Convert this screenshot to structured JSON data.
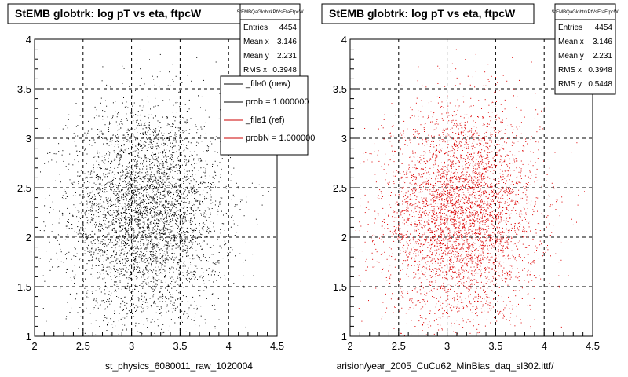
{
  "chart_data": [
    {
      "type": "scatter",
      "title": "StEMB globtrk: log pT vs eta, ftpcW",
      "xlabel": "st_physics_6080011_raw_1020004",
      "ylabel": "",
      "xlim": [
        2,
        4.5
      ],
      "ylim": [
        1,
        4
      ],
      "xticks": [
        "2",
        "2.5",
        "3",
        "3.5",
        "4",
        "4.5"
      ],
      "yticks": [
        "1",
        "1.5",
        "2",
        "2.5",
        "3",
        "3.5",
        "4"
      ],
      "grid": true,
      "marker_color": "#000000",
      "n_points": 4454,
      "center": [
        3.146,
        2.231
      ],
      "spread": [
        0.3948,
        0.5448
      ],
      "stats": {
        "title": "StEMBQaGlobtrkPtVsEtaFtpcW",
        "rows": [
          {
            "label": "Entries",
            "value": "4454"
          },
          {
            "label": "Mean x",
            "value": "3.146"
          },
          {
            "label": "Mean y",
            "value": "2.231"
          },
          {
            "label": "RMS x",
            "value": "0.3948"
          }
        ]
      },
      "legend": {
        "placement": "top-right",
        "entries": [
          {
            "label": "_file0 (new)",
            "color": "#000000"
          },
          {
            "label": "prob = 1.000000",
            "color": "#000000"
          },
          {
            "label": "_file1 (ref)",
            "color": "#cc0000"
          },
          {
            "label": "probN = 1.000000",
            "color": "#cc0000"
          }
        ]
      }
    },
    {
      "type": "scatter",
      "title": "StEMB globtrk: log pT vs eta, ftpcW",
      "xlabel": "arision/year_2005_CuCu62_MinBias_daq_sl302.ittf/",
      "ylabel": "",
      "xlim": [
        2,
        4.5
      ],
      "ylim": [
        1,
        4
      ],
      "xticks": [
        "2",
        "2.5",
        "3",
        "3.5",
        "4",
        "4.5"
      ],
      "yticks": [
        "1",
        "1.5",
        "2",
        "2.5",
        "3",
        "3.5",
        "4"
      ],
      "grid": true,
      "marker_color": "#dd0000",
      "n_points": 4454,
      "center": [
        3.146,
        2.231
      ],
      "spread": [
        0.3948,
        0.5448
      ],
      "stats": {
        "title": "StEMBQaGlobtrkPtVsEtaFtpcW",
        "rows": [
          {
            "label": "Entries",
            "value": "4454"
          },
          {
            "label": "Mean x",
            "value": "3.146"
          },
          {
            "label": "Mean y",
            "value": "2.231"
          },
          {
            "label": "RMS x",
            "value": "0.3948"
          },
          {
            "label": "RMS y",
            "value": "0.5448"
          }
        ]
      }
    }
  ]
}
